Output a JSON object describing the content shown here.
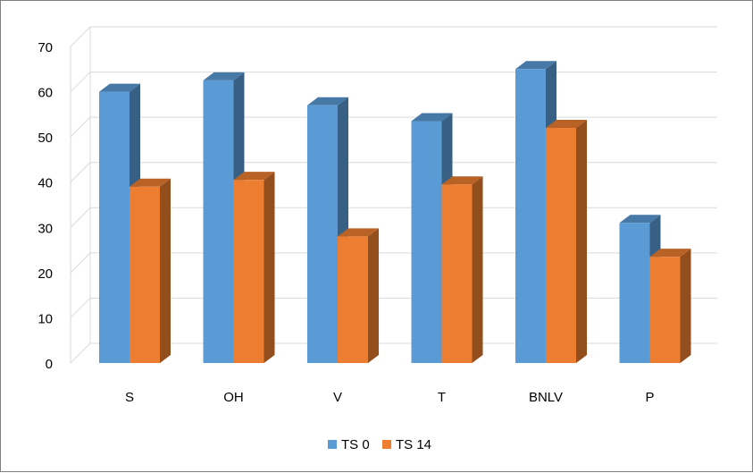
{
  "chart_data": {
    "type": "bar",
    "title": "",
    "xlabel": "",
    "ylabel": "",
    "ylim": [
      0,
      70
    ],
    "y_ticks": [
      0,
      10,
      20,
      30,
      40,
      50,
      60,
      70
    ],
    "grid": true,
    "legend_position": "bottom",
    "style": "3d-clustered-column",
    "categories": [
      "S",
      "OH",
      "V",
      "T",
      "BNLV",
      "P"
    ],
    "series": [
      {
        "name": "TS 0",
        "color": "#5b9bd5",
        "values": [
          60,
          62.5,
          57,
          53.5,
          65,
          31
        ]
      },
      {
        "name": "TS 14",
        "color": "#ed7d31",
        "values": [
          39,
          40.5,
          28,
          39.5,
          52,
          23.5
        ]
      }
    ]
  }
}
